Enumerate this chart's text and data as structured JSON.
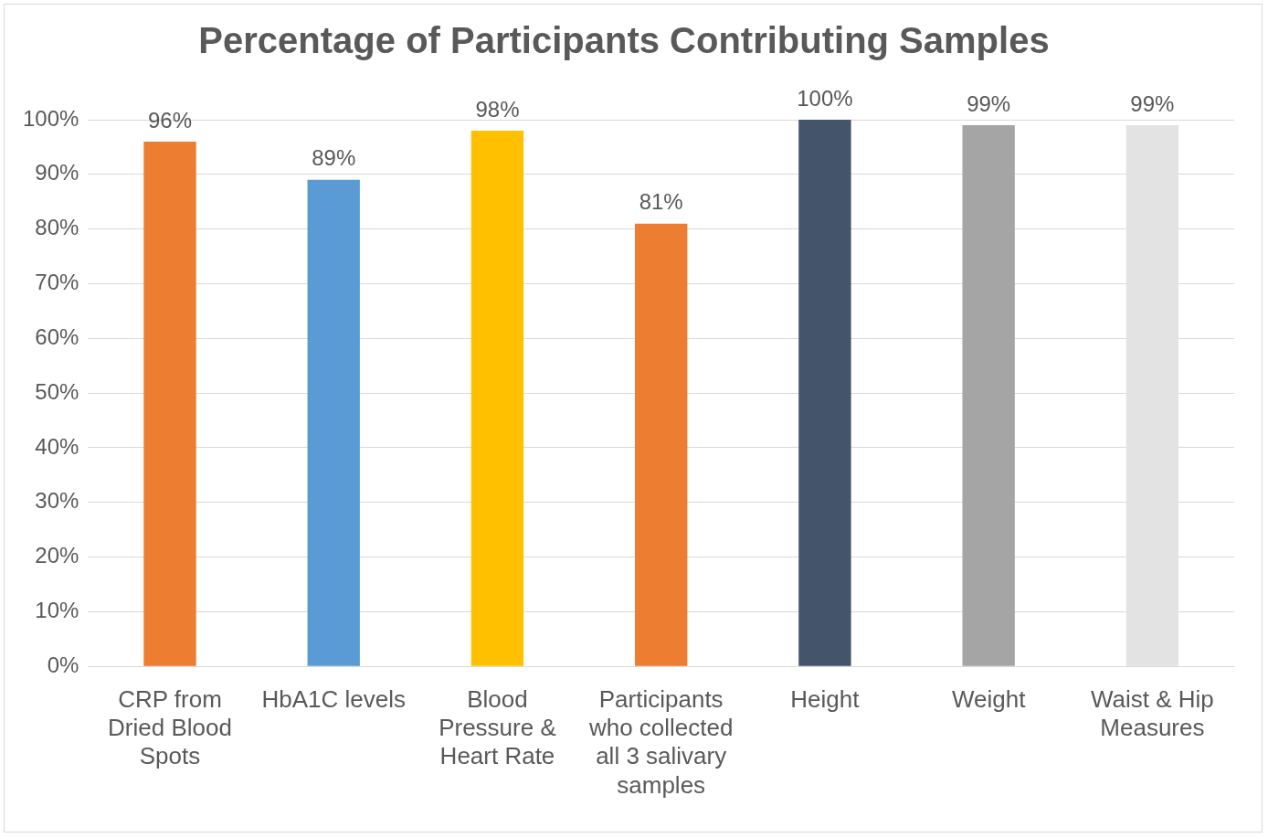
{
  "chart_data": {
    "type": "bar",
    "title": "Percentage of Participants Contributing Samples",
    "categories": [
      "CRP from Dried Blood Spots",
      "HbA1C levels",
      "Blood Pressure & Heart Rate",
      "Participants who collected all 3 salivary samples",
      "Height",
      "Weight",
      "Waist & Hip Measures"
    ],
    "values": [
      96,
      89,
      98,
      81,
      100,
      99,
      99
    ],
    "value_labels": [
      "96%",
      "89%",
      "98%",
      "81%",
      "100%",
      "99%",
      "99%"
    ],
    "colors": [
      "#ed7d31",
      "#5b9bd5",
      "#ffc000",
      "#ed7d31",
      "#44546a",
      "#a5a5a5",
      "#e3e3e3"
    ],
    "ylim": [
      0,
      100
    ],
    "yticks": [
      {
        "value": 0,
        "label": "0%"
      },
      {
        "value": 10,
        "label": "10%"
      },
      {
        "value": 20,
        "label": "20%"
      },
      {
        "value": 30,
        "label": "30%"
      },
      {
        "value": 40,
        "label": "40%"
      },
      {
        "value": 50,
        "label": "50%"
      },
      {
        "value": 60,
        "label": "60%"
      },
      {
        "value": 70,
        "label": "70%"
      },
      {
        "value": 80,
        "label": "80%"
      },
      {
        "value": 90,
        "label": "90%"
      },
      {
        "value": 100,
        "label": "100%"
      }
    ],
    "grid": "y",
    "legend": false
  }
}
